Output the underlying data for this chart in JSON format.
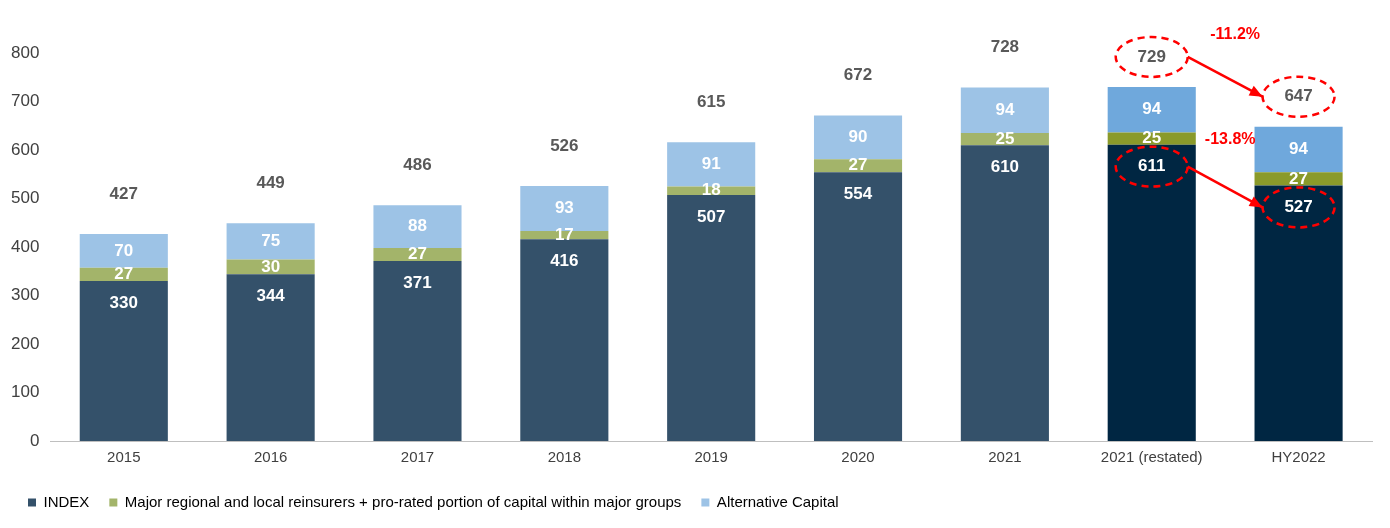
{
  "chart_data": {
    "type": "bar",
    "stacked": true,
    "categories": [
      "2015",
      "2016",
      "2017",
      "2018",
      "2019",
      "2020",
      "2021",
      "2021 (restated)",
      "HY2022"
    ],
    "series": [
      {
        "name": "INDEX",
        "color": "#34516a",
        "colors": [
          "#34516a",
          "#34516a",
          "#34516a",
          "#34516a",
          "#34516a",
          "#34516a",
          "#34516a",
          "#002642",
          "#002642"
        ],
        "values": [
          330,
          344,
          371,
          416,
          507,
          554,
          610,
          611,
          527
        ]
      },
      {
        "name": "Major regional and local reinsurers + pro-rated portion of capital within major groups",
        "color": "#a3b46a",
        "colors": [
          "#a3b46a",
          "#a3b46a",
          "#a3b46a",
          "#a3b46a",
          "#a3b46a",
          "#a3b46a",
          "#a3b46a",
          "#8a9a2a",
          "#8a9a2a"
        ],
        "values": [
          27,
          30,
          27,
          17,
          18,
          27,
          25,
          25,
          27
        ]
      },
      {
        "name": "Alternative Capital",
        "color": "#9dc3e6",
        "colors": [
          "#9dc3e6",
          "#9dc3e6",
          "#9dc3e6",
          "#9dc3e6",
          "#9dc3e6",
          "#9dc3e6",
          "#9dc3e6",
          "#6fa8dc",
          "#6fa8dc"
        ],
        "values": [
          70,
          75,
          88,
          93,
          91,
          90,
          94,
          94,
          94
        ]
      }
    ],
    "totals": [
      "427",
      "449",
      "486",
      "526",
      "615",
      "672",
      "728",
      "729",
      "647"
    ],
    "annotations": [
      "-11.2%",
      "-13.8%"
    ],
    "data_labels": true,
    "ylim": [
      0,
      800
    ],
    "yticks": [
      0,
      100,
      200,
      300,
      400,
      500,
      600,
      700,
      800
    ],
    "grid": false,
    "legend": "bottom"
  }
}
